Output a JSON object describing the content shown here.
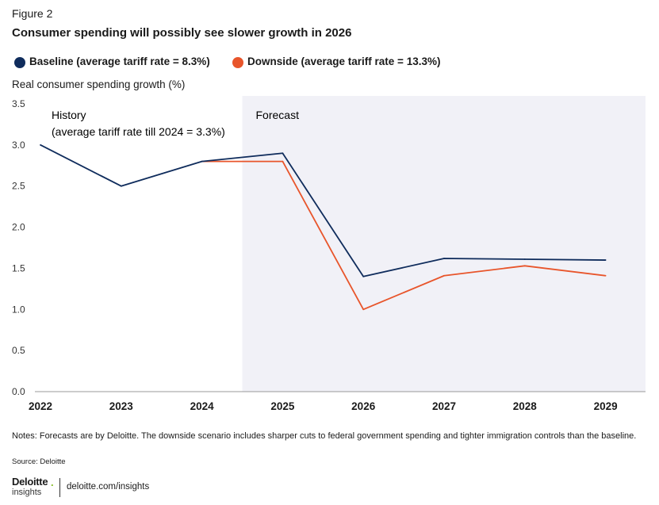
{
  "figure_label": "Figure 2",
  "title": "Consumer spending will possibly see slower growth in 2026",
  "notes": "Notes: Forecasts are by Deloitte. The downside scenario includes sharper cuts to federal government spending and tighter immigration controls than the baseline.",
  "source": "Source: Deloitte",
  "logo": {
    "word": "Deloitte",
    "dot": ".",
    "sub": "insights"
  },
  "website": "deloitte.com/insights",
  "colors": {
    "baseline": "#0f2c5c",
    "downside": "#e8552b",
    "forecast_bg": "#f1f1f7",
    "axis": "#999999"
  },
  "chart_data": {
    "type": "line",
    "ylabel": "Real consumer spending growth (%)",
    "xlabel": "",
    "categories": [
      "2022",
      "2023",
      "2024",
      "2025",
      "2026",
      "2027",
      "2028",
      "2029"
    ],
    "ylim": [
      0,
      3.5
    ],
    "yticks": [
      "0.0",
      "0.5",
      "1.0",
      "1.5",
      "2.0",
      "2.5",
      "3.0",
      "3.5"
    ],
    "grid": false,
    "series": [
      {
        "name": "Baseline (average tariff rate = 8.3%)",
        "values": [
          3.0,
          2.5,
          2.8,
          2.9,
          1.4,
          1.62,
          1.61,
          1.6
        ]
      },
      {
        "name": "Downside (average tariff rate = 13.3%)",
        "values": [
          null,
          null,
          2.8,
          2.8,
          1.0,
          1.41,
          1.53,
          1.41
        ]
      }
    ],
    "annotations": {
      "history_title": "History",
      "history_sub": "(average tariff rate till 2024 = 3.3%)",
      "forecast": "Forecast"
    },
    "forecast_start_between": [
      "2024",
      "2025"
    ]
  }
}
